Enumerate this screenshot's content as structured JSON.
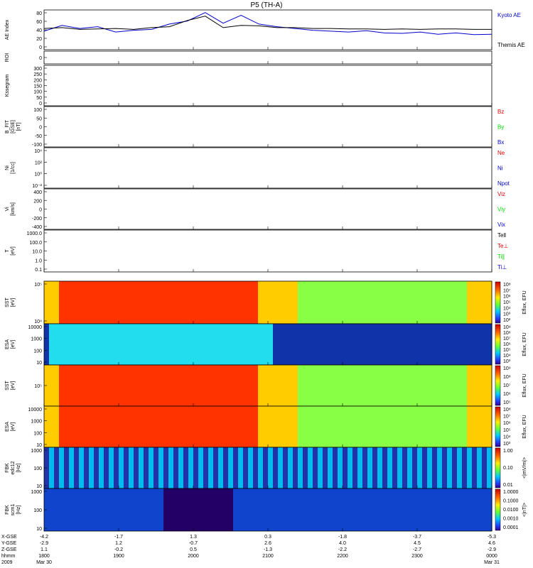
{
  "title": "P5 (TH-A)",
  "colors": {
    "blue": "#0000cc",
    "green": "#00dd00",
    "red": "#dd0000",
    "black": "#000000"
  },
  "chart_data": [
    {
      "type": "line",
      "id": "ae",
      "ylabel": "AE Index",
      "ylim": [
        -10,
        80
      ],
      "yticks": [
        "80",
        "60",
        "40",
        "20",
        "0"
      ],
      "legend": [
        "Kyoto AE",
        "Themis AE"
      ],
      "x": [
        0,
        0.04,
        0.08,
        0.12,
        0.16,
        0.2,
        0.24,
        0.28,
        0.32,
        0.36,
        0.4,
        0.44,
        0.48,
        0.52,
        0.56,
        0.6,
        0.64,
        0.68,
        0.72,
        0.76,
        0.8,
        0.84,
        0.88,
        0.92,
        0.96,
        1.0
      ],
      "series": [
        {
          "name": "Kyoto AE",
          "color": "blue",
          "values": [
            32,
            45,
            38,
            42,
            30,
            34,
            36,
            48,
            55,
            74,
            50,
            68,
            48,
            42,
            38,
            34,
            32,
            30,
            33,
            28,
            27,
            30,
            25,
            28,
            24,
            25
          ]
        },
        {
          "name": "Themis AE",
          "color": "black",
          "values": [
            38,
            40,
            36,
            37,
            38,
            36,
            40,
            42,
            56,
            66,
            40,
            45,
            44,
            40,
            40,
            38,
            38,
            37,
            37,
            36,
            37,
            36,
            37,
            37,
            36,
            36
          ]
        }
      ]
    },
    {
      "type": "line",
      "id": "roi",
      "ylabel": "ROI",
      "yticks": [
        "0"
      ]
    },
    {
      "type": "line",
      "id": "kp",
      "ylabel": "Kssegram",
      "ylim": [
        0,
        300
      ],
      "yticks": [
        "300",
        "250",
        "200",
        "150",
        "100",
        "50",
        "0"
      ]
    },
    {
      "type": "line",
      "id": "bfield",
      "ylabel": "B_FIT\n[GSE]\n[nT]",
      "ylim": [
        -100,
        100
      ],
      "yticks": [
        "100",
        "50",
        "0",
        "-50",
        "-100"
      ],
      "legend": [
        "Bz",
        "By",
        "Bx"
      ],
      "legend_colors": [
        "red",
        "green",
        "blue"
      ]
    },
    {
      "type": "line",
      "id": "density",
      "ylabel": "Ni\n[1/cc]",
      "yticks": [
        "10⁴",
        "10²",
        "10⁰",
        "10⁻²"
      ],
      "legend": [
        "Ne",
        "Ni",
        "Npot"
      ],
      "legend_colors": [
        "red",
        "blue",
        "blue"
      ]
    },
    {
      "type": "line",
      "id": "velocity",
      "ylabel": "Vi\n[km/s]",
      "ylim": [
        -500,
        500
      ],
      "yticks": [
        "400",
        "200",
        "0",
        "-200",
        "-400"
      ],
      "legend": [
        "Viz",
        "Viy",
        "Vix"
      ],
      "legend_colors": [
        "red",
        "green",
        "blue"
      ]
    },
    {
      "type": "line",
      "id": "temperature",
      "ylabel": "T\n[eV]",
      "yticks": [
        "1000.0",
        "100.0",
        "10.0",
        "1.0",
        "0.1"
      ],
      "legend": [
        "Tell",
        "Te⊥",
        "Ti∥",
        "Ti⊥"
      ],
      "legend_colors": [
        "black",
        "red",
        "green",
        "blue"
      ]
    },
    {
      "type": "heatmap",
      "id": "sst_e",
      "ylabel": "SST\n[eV]",
      "yticks": [
        "10⁵",
        "10⁴"
      ],
      "colorbar_label": "Eflux, EFU",
      "colorbar_ticks": [
        "10⁸",
        "10⁷",
        "10⁶",
        "10⁵",
        "10⁴",
        "10³",
        "10²"
      ]
    },
    {
      "type": "heatmap",
      "id": "esa_e",
      "ylabel": "ESA\n[eV]",
      "yticks": [
        "10000",
        "1000",
        "100",
        "10"
      ],
      "colorbar_label": "Eflux, EFU",
      "colorbar_ticks": [
        "10⁹",
        "10⁸",
        "10⁷",
        "10⁶",
        "10⁵",
        "10⁴",
        "10³"
      ]
    },
    {
      "type": "heatmap",
      "id": "sst_i",
      "ylabel": "SST\n[eV]",
      "yticks": [
        "10⁵"
      ],
      "colorbar_label": "Eflux, EFU",
      "colorbar_ticks": [
        "10⁹",
        "10⁸",
        "10⁷",
        "10⁶",
        "10⁵"
      ]
    },
    {
      "type": "heatmap",
      "id": "esa_i",
      "ylabel": "ESA\n[eV]",
      "yticks": [
        "10000",
        "1000",
        "100",
        "10"
      ],
      "colorbar_label": "Eflux, EFU",
      "colorbar_ticks": [
        "10⁸",
        "10⁷",
        "10⁶",
        "10⁵",
        "10⁴",
        "10³"
      ]
    },
    {
      "type": "heatmap",
      "id": "fbk_e",
      "ylabel": "FBK\nedc12\n[Hz]",
      "yticks": [
        "1000",
        "100",
        "10"
      ],
      "colorbar_label": "<|mV/m|>",
      "colorbar_ticks": [
        "1.00",
        "0.10",
        "0.01"
      ]
    },
    {
      "type": "heatmap",
      "id": "fbk_b",
      "ylabel": "FBK\nscm1\n[Hz]",
      "yticks": [
        "1000",
        "100",
        "10"
      ],
      "colorbar_label": "<|nT|>",
      "colorbar_ticks": [
        "1.0000",
        "0.1000",
        "0.0100",
        "0.0010",
        "0.0001"
      ]
    }
  ],
  "xaxis": {
    "row_labels": [
      "X-GSE",
      "Y-GSE",
      "Z-GSE",
      "hhmm",
      "2009"
    ],
    "columns": [
      {
        "vals": [
          "-4.2",
          "-2.9",
          "1.1",
          "1800",
          "Mar 30"
        ]
      },
      {
        "vals": [
          "-1.7",
          "1.2",
          "-0.2",
          "1900",
          ""
        ]
      },
      {
        "vals": [
          "1.3",
          "-0.7",
          "0.5",
          "2000",
          ""
        ]
      },
      {
        "vals": [
          "0.3",
          "2.6",
          "-1.3",
          "2100",
          ""
        ]
      },
      {
        "vals": [
          "-1.8",
          "4.0",
          "-2.2",
          "2200",
          ""
        ]
      },
      {
        "vals": [
          "-3.7",
          "4.5",
          "-2.7",
          "2300",
          ""
        ]
      },
      {
        "vals": [
          "-5.3",
          "4.6",
          "-2.9",
          "0000",
          "Mar 31"
        ]
      }
    ]
  }
}
